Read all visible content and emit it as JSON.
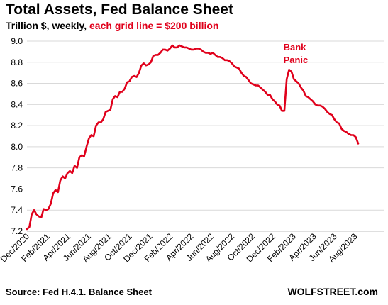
{
  "header": {
    "title": "Total Assets, Fed Balance Sheet",
    "subtitle_black": "Trillion $, weekly, ",
    "subtitle_red": "each grid line = $200 billion"
  },
  "footer": {
    "source": "Source: Fed H.4.1. Balance Sheet",
    "brand": "WOLFSTREET.com"
  },
  "colors": {
    "line": "#e0001b",
    "grid": "#d9d9d9",
    "annotation": "#e0001b"
  },
  "chart_data": {
    "type": "line",
    "title": "Total Assets, Fed Balance Sheet",
    "ylabel": "Trillion $, weekly",
    "ylim": [
      7.2,
      9.0
    ],
    "yticks": [
      "7.2",
      "7.4",
      "7.6",
      "7.8",
      "8.0",
      "8.2",
      "8.4",
      "8.6",
      "8.8",
      "9.0"
    ],
    "xlim": [
      0,
      150
    ],
    "xtick_labels": [
      "Dec/2020",
      "Feb/2021",
      "Apr/2021",
      "Jun/2021",
      "Aug/2021",
      "Oct/2021",
      "Dec/2021",
      "Feb/2022",
      "Apr/2022",
      "Jun/2022",
      "Aug/2022",
      "Oct/2022",
      "Dec/2022",
      "Feb/2023",
      "Apr/2023",
      "Jun/2023",
      "Aug/2023"
    ],
    "grid": true,
    "annotation": [
      "Bank",
      "Panic"
    ],
    "series": [
      {
        "points": [
          [
            0,
            7.22
          ],
          [
            1,
            7.24
          ],
          [
            2,
            7.36
          ],
          [
            3,
            7.4
          ],
          [
            4,
            7.36
          ],
          [
            5,
            7.34
          ],
          [
            6,
            7.33
          ],
          [
            7,
            7.41
          ],
          [
            8,
            7.4
          ],
          [
            9,
            7.41
          ],
          [
            10,
            7.46
          ],
          [
            11,
            7.56
          ],
          [
            12,
            7.59
          ],
          [
            13,
            7.57
          ],
          [
            14,
            7.68
          ],
          [
            15,
            7.72
          ],
          [
            16,
            7.7
          ],
          [
            17,
            7.75
          ],
          [
            18,
            7.77
          ],
          [
            19,
            7.75
          ],
          [
            20,
            7.82
          ],
          [
            21,
            7.8
          ],
          [
            22,
            7.9
          ],
          [
            23,
            7.92
          ],
          [
            24,
            7.91
          ],
          [
            25,
            8.0
          ],
          [
            26,
            8.08
          ],
          [
            27,
            8.11
          ],
          [
            28,
            8.1
          ],
          [
            29,
            8.2
          ],
          [
            30,
            8.23
          ],
          [
            31,
            8.23
          ],
          [
            32,
            8.26
          ],
          [
            33,
            8.33
          ],
          [
            34,
            8.34
          ],
          [
            35,
            8.35
          ],
          [
            36,
            8.45
          ],
          [
            37,
            8.48
          ],
          [
            38,
            8.47
          ],
          [
            39,
            8.52
          ],
          [
            40,
            8.52
          ],
          [
            41,
            8.55
          ],
          [
            42,
            8.61
          ],
          [
            43,
            8.62
          ],
          [
            44,
            8.66
          ],
          [
            45,
            8.67
          ],
          [
            46,
            8.66
          ],
          [
            47,
            8.7
          ],
          [
            48,
            8.77
          ],
          [
            49,
            8.79
          ],
          [
            50,
            8.77
          ],
          [
            51,
            8.78
          ],
          [
            52,
            8.8
          ],
          [
            53,
            8.86
          ],
          [
            54,
            8.87
          ],
          [
            55,
            8.87
          ],
          [
            56,
            8.89
          ],
          [
            57,
            8.92
          ],
          [
            58,
            8.92
          ],
          [
            59,
            8.91
          ],
          [
            60,
            8.93
          ],
          [
            61,
            8.96
          ],
          [
            62,
            8.94
          ],
          [
            63,
            8.94
          ],
          [
            64,
            8.96
          ],
          [
            65,
            8.95
          ],
          [
            66,
            8.94
          ],
          [
            67,
            8.94
          ],
          [
            68,
            8.93
          ],
          [
            69,
            8.92
          ],
          [
            70,
            8.92
          ],
          [
            71,
            8.93
          ],
          [
            72,
            8.93
          ],
          [
            73,
            8.92
          ],
          [
            74,
            8.9
          ],
          [
            75,
            8.89
          ],
          [
            76,
            8.89
          ],
          [
            77,
            8.88
          ],
          [
            78,
            8.89
          ],
          [
            79,
            8.87
          ],
          [
            80,
            8.85
          ],
          [
            81,
            8.85
          ],
          [
            82,
            8.84
          ],
          [
            83,
            8.82
          ],
          [
            84,
            8.82
          ],
          [
            85,
            8.81
          ],
          [
            86,
            8.79
          ],
          [
            87,
            8.76
          ],
          [
            88,
            8.75
          ],
          [
            89,
            8.74
          ],
          [
            90,
            8.7
          ],
          [
            91,
            8.67
          ],
          [
            92,
            8.66
          ],
          [
            93,
            8.63
          ],
          [
            94,
            8.6
          ],
          [
            95,
            8.59
          ],
          [
            96,
            8.58
          ],
          [
            97,
            8.58
          ],
          [
            98,
            8.56
          ],
          [
            99,
            8.54
          ],
          [
            100,
            8.52
          ],
          [
            101,
            8.49
          ],
          [
            102,
            8.49
          ],
          [
            103,
            8.45
          ],
          [
            104,
            8.43
          ],
          [
            105,
            8.4
          ],
          [
            106,
            8.39
          ],
          [
            107,
            8.34
          ],
          [
            108,
            8.34
          ],
          [
            109,
            8.64
          ],
          [
            110,
            8.73
          ],
          [
            111,
            8.71
          ],
          [
            112,
            8.64
          ],
          [
            113,
            8.62
          ],
          [
            114,
            8.6
          ],
          [
            115,
            8.56
          ],
          [
            116,
            8.53
          ],
          [
            117,
            8.48
          ],
          [
            118,
            8.47
          ],
          [
            119,
            8.45
          ],
          [
            120,
            8.43
          ],
          [
            121,
            8.4
          ],
          [
            122,
            8.39
          ],
          [
            123,
            8.39
          ],
          [
            124,
            8.38
          ],
          [
            125,
            8.36
          ],
          [
            126,
            8.33
          ],
          [
            127,
            8.31
          ],
          [
            128,
            8.3
          ],
          [
            129,
            8.26
          ],
          [
            130,
            8.23
          ],
          [
            131,
            8.22
          ],
          [
            132,
            8.17
          ],
          [
            133,
            8.15
          ],
          [
            134,
            8.14
          ],
          [
            135,
            8.12
          ],
          [
            136,
            8.11
          ],
          [
            137,
            8.11
          ],
          [
            138,
            8.09
          ],
          [
            139,
            8.03
          ]
        ]
      }
    ]
  }
}
